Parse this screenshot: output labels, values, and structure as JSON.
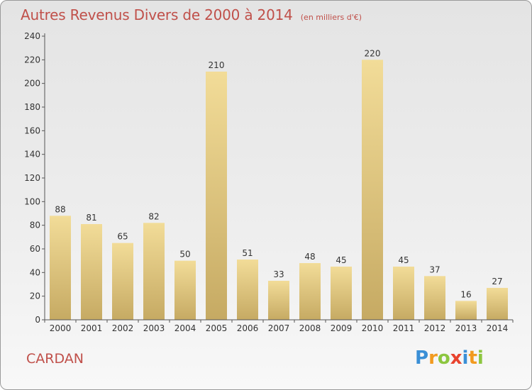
{
  "header": {
    "title": "Autres Revenus Divers de 2000 à 2014",
    "unit": "(en milliers d'€)"
  },
  "footer": {
    "commune": "CARDAN",
    "brand_letters": [
      {
        "ch": "P",
        "color": "#3a8fd6"
      },
      {
        "ch": "r",
        "color": "#f29a1f"
      },
      {
        "ch": "o",
        "color": "#8cc63f"
      },
      {
        "ch": "x",
        "color": "#e8432e"
      },
      {
        "ch": "i",
        "color": "#3a8fd6"
      },
      {
        "ch": "t",
        "color": "#f29a1f"
      },
      {
        "ch": "i",
        "color": "#8cc63f"
      }
    ]
  },
  "chart_data": {
    "type": "bar",
    "title": "Autres Revenus Divers de 2000 à 2014",
    "subtitle": "(en milliers d'€)",
    "categories": [
      "2000",
      "2001",
      "2002",
      "2003",
      "2004",
      "2005",
      "2006",
      "2007",
      "2008",
      "2009",
      "2010",
      "2011",
      "2012",
      "2013",
      "2014"
    ],
    "values": [
      88,
      81,
      65,
      82,
      50,
      210,
      51,
      33,
      48,
      45,
      220,
      45,
      37,
      16,
      27
    ],
    "ylim": [
      0,
      240
    ],
    "yticks": [
      0,
      20,
      40,
      60,
      80,
      100,
      120,
      140,
      160,
      180,
      200,
      220,
      240
    ],
    "grid": false,
    "bar_color_light": "#f2dc98",
    "bar_color_dark": "#c6aa63"
  }
}
